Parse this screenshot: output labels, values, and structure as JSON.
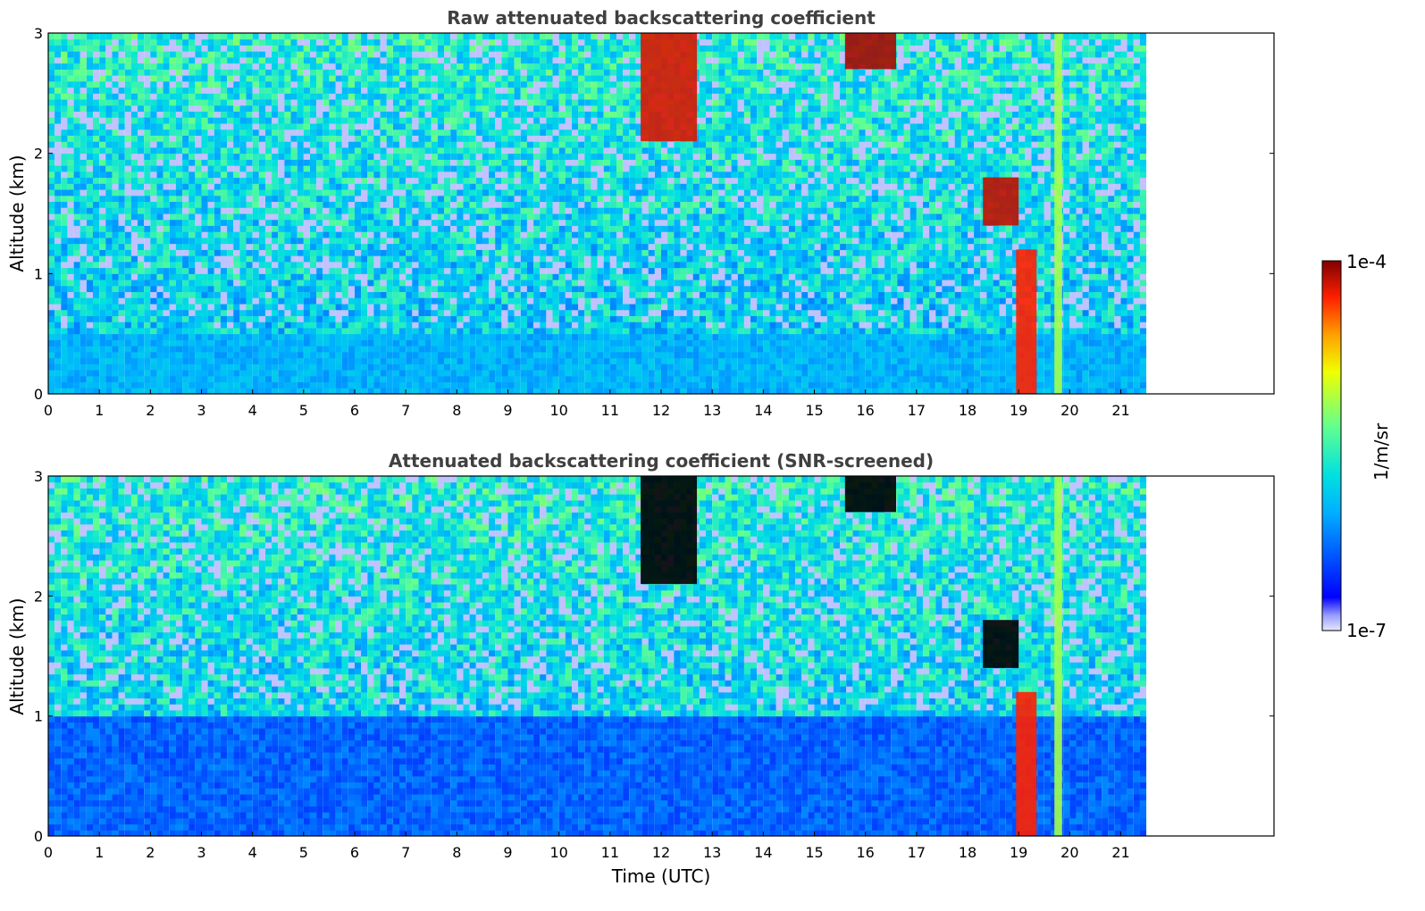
{
  "chart_data": [
    {
      "type": "heatmap",
      "title": "Raw attenuated backscattering coefficient",
      "xlabel": "",
      "ylabel": "Altitude (km)",
      "xlim": [
        0,
        24
      ],
      "ylim": [
        0,
        3
      ],
      "data_time_range": [
        0,
        21.5
      ],
      "xticks": [
        "0",
        "1",
        "2",
        "3",
        "4",
        "5",
        "6",
        "7",
        "8",
        "9",
        "10",
        "11",
        "12",
        "13",
        "14",
        "15",
        "16",
        "17",
        "18",
        "19",
        "20",
        "21"
      ],
      "yticks": [
        "0",
        "1",
        "2",
        "3"
      ],
      "grid": false,
      "features": [
        {
          "t0": 0,
          "t1": 21.5,
          "z0": 0,
          "z1": 0.5,
          "level": 0.33
        },
        {
          "t0": 18.95,
          "t1": 19.35,
          "z0": 0,
          "z1": 1.2,
          "level": 0.9
        },
        {
          "t0": 19.7,
          "t1": 19.85,
          "z0": 0,
          "z1": 3,
          "level": 0.62
        },
        {
          "t0": 11.6,
          "t1": 12.7,
          "z0": 2.1,
          "z1": 3,
          "level": 0.93
        },
        {
          "t0": 15.6,
          "t1": 16.6,
          "z0": 2.7,
          "z1": 3,
          "level": 0.97
        },
        {
          "t0": 18.3,
          "t1": 19.0,
          "z0": 1.4,
          "z1": 1.8,
          "level": 0.95
        }
      ]
    },
    {
      "type": "heatmap",
      "title": "Attenuated backscattering coefficient (SNR-screened)",
      "xlabel": "Time (UTC)",
      "ylabel": "Altitude (km)",
      "xlim": [
        0,
        24
      ],
      "ylim": [
        0,
        3
      ],
      "data_time_range": [
        0,
        21.5
      ],
      "xticks": [
        "0",
        "1",
        "2",
        "3",
        "4",
        "5",
        "6",
        "7",
        "8",
        "9",
        "10",
        "11",
        "12",
        "13",
        "14",
        "15",
        "16",
        "17",
        "18",
        "19",
        "20",
        "21"
      ],
      "yticks": [
        "0",
        "1",
        "2",
        "3"
      ],
      "grid": false,
      "features": [
        {
          "t0": 0,
          "t1": 21.5,
          "z0": 0,
          "z1": 1.0,
          "level": 0.22
        },
        {
          "t0": 18.95,
          "t1": 19.35,
          "z0": 0,
          "z1": 1.2,
          "level": 0.9
        },
        {
          "t0": 19.7,
          "t1": 19.85,
          "z0": 0,
          "z1": 3,
          "level": 0.62
        },
        {
          "t0": 11.6,
          "t1": 12.7,
          "z0": 2.1,
          "z1": 3,
          "level": 1.0
        },
        {
          "t0": 15.6,
          "t1": 16.6,
          "z0": 2.7,
          "z1": 3,
          "level": 1.0
        },
        {
          "t0": 18.3,
          "t1": 19.0,
          "z0": 1.4,
          "z1": 1.8,
          "level": 1.0
        }
      ]
    }
  ],
  "colorbar": {
    "label": "1/m/sr",
    "max_label": "1e-4",
    "min_label": "1e-7",
    "colormap": "jet",
    "scale": "log",
    "range": [
      1e-07,
      0.0001
    ]
  }
}
